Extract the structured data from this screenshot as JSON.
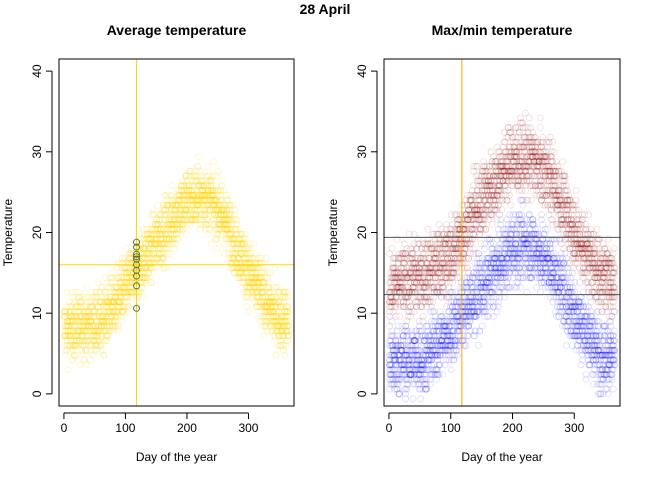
{
  "page": {
    "title": "28 April"
  },
  "chart_data": [
    {
      "type": "scatter",
      "title": "Average temperature",
      "xlabel": "Day of the year",
      "ylabel": "Temperature",
      "xlim": [
        -8,
        374
      ],
      "ylim": [
        -1.5,
        41.5
      ],
      "xticks": [
        "0",
        "100",
        "200",
        "300"
      ],
      "yticks": [
        "0",
        "10",
        "20",
        "30",
        "40"
      ],
      "point_color": "#FFD700",
      "marker_color": "#FFD700",
      "highlight_point_color": "#556B2F",
      "reference_lines": {
        "x": 118,
        "y": 16.0
      },
      "highlighted_day": 118,
      "highlighted_values": [
        10.6,
        13.4,
        14.6,
        15.3,
        16.0,
        16.7,
        17.0,
        17.3,
        18.2,
        18.8
      ],
      "series": [
        {
          "points": "dense scatter of daily average temperatures, one per day per year",
          "profile": [
            [
              0,
              8
            ],
            [
              60,
              9
            ],
            [
              100,
              13
            ],
            [
              150,
              19
            ],
            [
              200,
              24
            ],
            [
              230,
              24.5
            ],
            [
              260,
              22
            ],
            [
              300,
              15
            ],
            [
              340,
              10
            ],
            [
              365,
              9
            ]
          ],
          "spread": 3.5,
          "range": [
            0.5,
            33.8
          ]
        }
      ]
    },
    {
      "type": "scatter",
      "title": "Max/min temperature",
      "xlabel": "Day of the year",
      "ylabel": "Temperature",
      "xlim": [
        -8,
        374
      ],
      "ylim": [
        -1.5,
        41.5
      ],
      "xticks": [
        "0",
        "100",
        "200",
        "300"
      ],
      "yticks": [
        "0",
        "10",
        "20",
        "30",
        "40"
      ],
      "max_color": "#8B0000",
      "min_color": "#0000FF",
      "marker_color": "#FFA500",
      "hline_color": "#555555",
      "reference_lines": {
        "x": 118,
        "y_max": 19.4,
        "y_min": 12.3
      },
      "highlighted_day": 118,
      "series": [
        {
          "name": "max",
          "profile": [
            [
              0,
              13
            ],
            [
              60,
              15
            ],
            [
              100,
              17
            ],
            [
              150,
              24
            ],
            [
              200,
              29
            ],
            [
              230,
              29
            ],
            [
              260,
              27
            ],
            [
              300,
              20
            ],
            [
              340,
              15
            ],
            [
              365,
              14
            ]
          ],
          "spread": 4,
          "range": [
            8,
            35.5
          ]
        },
        {
          "name": "min",
          "profile": [
            [
              0,
              4
            ],
            [
              60,
              4.5
            ],
            [
              100,
              8
            ],
            [
              150,
              13
            ],
            [
              200,
              18
            ],
            [
              230,
              18.5
            ],
            [
              260,
              16
            ],
            [
              300,
              10
            ],
            [
              340,
              5
            ],
            [
              365,
              5
            ]
          ],
          "spread": 4,
          "range": [
            -0.5,
            26
          ]
        }
      ]
    }
  ]
}
